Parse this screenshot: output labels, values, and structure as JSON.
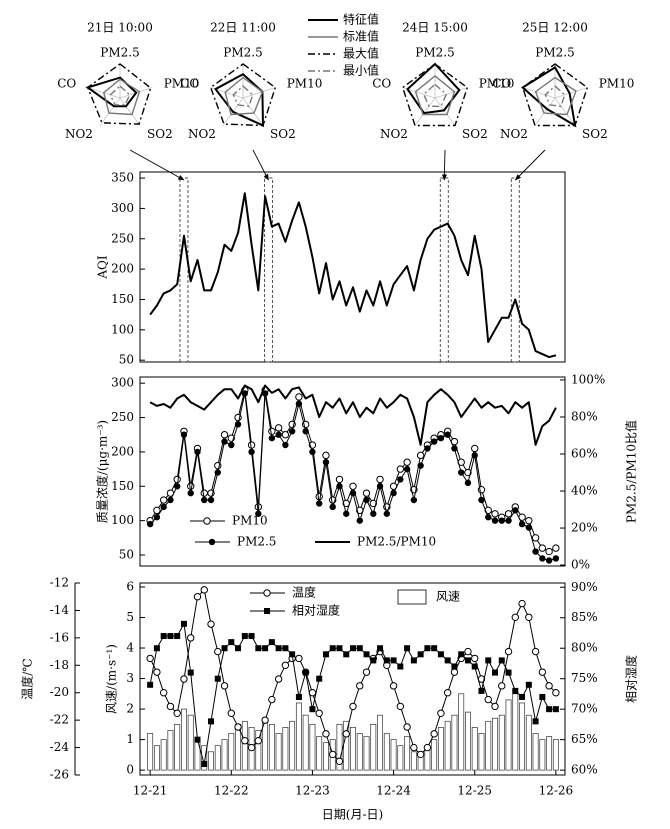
{
  "chart_data": [
    {
      "type": "radar",
      "axes": [
        "PM2.5",
        "PM10",
        "SO2",
        "NO2",
        "CO"
      ],
      "rlim": [
        0,
        1
      ],
      "series": [
        {
          "name": "特征值",
          "color": "#000000",
          "style": "solid"
        },
        {
          "name": "标准值",
          "color": "#777777",
          "style": "solid"
        },
        {
          "name": "最大值",
          "color": "#000000",
          "style": "dashdot"
        },
        {
          "name": "最小值",
          "color": "#777777",
          "style": "dashdot"
        }
      ],
      "panels": [
        {
          "title": "21日 10:00",
          "values": [
            [
              0.6,
              0.5,
              0.3,
              0.3,
              1.0
            ],
            [
              0.55,
              0.6,
              0.6,
              0.55,
              0.5
            ],
            [
              1,
              0.95,
              0.95,
              0.9,
              1
            ],
            [
              0.35,
              0.3,
              0.25,
              0.25,
              0.3
            ]
          ]
        },
        {
          "title": "22日 11:00",
          "values": [
            [
              0.7,
              0.6,
              1.0,
              0.5,
              0.85
            ],
            [
              0.6,
              0.6,
              0.55,
              0.6,
              0.55
            ],
            [
              1,
              1,
              1,
              0.95,
              1
            ],
            [
              0.35,
              0.3,
              0.3,
              0.25,
              0.3
            ]
          ]
        },
        {
          "title": "24日 15:00",
          "values": [
            [
              1.0,
              0.75,
              0.45,
              0.55,
              0.85
            ],
            [
              0.65,
              0.6,
              0.6,
              0.6,
              0.6
            ],
            [
              1,
              1,
              1,
              1,
              1
            ],
            [
              0.4,
              0.35,
              0.3,
              0.3,
              0.35
            ]
          ]
        },
        {
          "title": "25日 12:00",
          "values": [
            [
              0.9,
              0.45,
              1.0,
              0.4,
              1.0
            ],
            [
              0.6,
              0.65,
              0.6,
              0.55,
              0.6
            ],
            [
              1,
              1,
              1,
              1,
              1
            ],
            [
              0.35,
              0.3,
              0.3,
              0.25,
              0.3
            ]
          ]
        }
      ]
    },
    {
      "type": "line",
      "ylabel": "AQI",
      "x": [
        0,
        2,
        4,
        6,
        8,
        10,
        12,
        14,
        16,
        18,
        20,
        22,
        24,
        26,
        28,
        30,
        32,
        34,
        36,
        38,
        40,
        42,
        44,
        46,
        48,
        50,
        52,
        54,
        56,
        58,
        60,
        62,
        64,
        66,
        68,
        70,
        72,
        74,
        76,
        78,
        80,
        82,
        84,
        86,
        88,
        90,
        92,
        94,
        96,
        98,
        100,
        102,
        104,
        106,
        108,
        110,
        112,
        114,
        116,
        118,
        120
      ],
      "xlim": [
        -3,
        122.7
      ],
      "ylim": [
        47,
        360
      ],
      "yticks": [
        50,
        100,
        150,
        200,
        250,
        300,
        350
      ],
      "highlight_x": [
        10,
        35,
        87,
        108
      ],
      "series": [
        {
          "color": "#000000",
          "values": [
            125,
            140,
            160,
            165,
            175,
            255,
            180,
            215,
            165,
            165,
            195,
            240,
            230,
            260,
            325,
            240,
            165,
            320,
            270,
            275,
            245,
            280,
            310,
            270,
            220,
            160,
            210,
            150,
            180,
            140,
            170,
            130,
            165,
            140,
            180,
            140,
            175,
            190,
            205,
            165,
            215,
            250,
            265,
            270,
            275,
            255,
            215,
            190,
            255,
            200,
            80,
            100,
            120,
            120,
            150,
            110,
            100,
            65,
            60,
            55,
            58
          ]
        }
      ]
    },
    {
      "type": "line",
      "ylabel": "质量浓度/(μg·m⁻³)",
      "y2label": "PM2.5/PM10比值",
      "x": [
        0,
        2,
        4,
        6,
        8,
        10,
        12,
        14,
        16,
        18,
        20,
        22,
        24,
        26,
        28,
        30,
        32,
        34,
        36,
        38,
        40,
        42,
        44,
        46,
        48,
        50,
        52,
        54,
        56,
        58,
        60,
        62,
        64,
        66,
        68,
        70,
        72,
        74,
        76,
        78,
        80,
        82,
        84,
        86,
        88,
        90,
        92,
        94,
        96,
        98,
        100,
        102,
        104,
        106,
        108,
        110,
        112,
        114,
        116,
        118,
        120
      ],
      "xlim": [
        -3,
        122.7
      ],
      "ylim": [
        34,
        309
      ],
      "yticks": [
        50,
        100,
        150,
        200,
        250,
        300
      ],
      "y2lim": [
        -0.5,
        101.6
      ],
      "y2ticks": [
        {
          "value": 0,
          "label": "0%"
        },
        {
          "value": 20,
          "label": "20%"
        },
        {
          "value": 40,
          "label": "40%"
        },
        {
          "value": 60,
          "label": "60%"
        },
        {
          "value": 80,
          "label": "80%"
        },
        {
          "value": 100,
          "label": "100%"
        }
      ],
      "series": [
        {
          "name": "PM10",
          "color": "#000000",
          "marker": "open-circle",
          "values": [
            100,
            115,
            130,
            140,
            160,
            230,
            150,
            205,
            140,
            140,
            180,
            225,
            220,
            250,
            290,
            210,
            120,
            290,
            230,
            235,
            225,
            240,
            280,
            240,
            210,
            135,
            195,
            130,
            160,
            125,
            150,
            115,
            140,
            125,
            160,
            120,
            150,
            175,
            185,
            145,
            195,
            210,
            220,
            225,
            230,
            215,
            185,
            170,
            205,
            145,
            115,
            110,
            105,
            110,
            120,
            105,
            100,
            75,
            60,
            55,
            60
          ]
        },
        {
          "name": "PM2.5",
          "color": "#000000",
          "marker": "filled-circle",
          "values": [
            95,
            105,
            120,
            130,
            150,
            225,
            140,
            200,
            130,
            130,
            170,
            215,
            210,
            240,
            285,
            200,
            110,
            285,
            220,
            225,
            210,
            230,
            270,
            230,
            200,
            125,
            185,
            120,
            150,
            110,
            140,
            100,
            130,
            110,
            150,
            110,
            140,
            160,
            175,
            130,
            180,
            205,
            215,
            220,
            225,
            205,
            170,
            155,
            195,
            130,
            105,
            100,
            100,
            100,
            115,
            95,
            90,
            55,
            45,
            42,
            45
          ]
        },
        {
          "name": "PM2.5/PM10",
          "color": "#000000",
          "axis": "y2",
          "values": [
            88,
            86,
            87,
            85,
            90,
            92,
            88,
            86,
            84,
            88,
            92,
            95,
            95,
            90,
            97,
            95,
            88,
            97,
            93,
            95,
            90,
            95,
            96,
            90,
            92,
            80,
            88,
            85,
            90,
            82,
            88,
            80,
            85,
            82,
            90,
            85,
            88,
            92,
            90,
            80,
            65,
            88,
            92,
            95,
            92,
            88,
            80,
            85,
            90,
            85,
            88,
            85,
            86,
            82,
            88,
            85,
            88,
            65,
            75,
            78,
            85
          ]
        }
      ]
    },
    {
      "type": "combo",
      "xlabel": "日期(月-日)",
      "ylabel": "风速/(m·s⁻¹)",
      "y2label": "相对湿度",
      "y3label": "温度/℃",
      "x": [
        0,
        2,
        4,
        6,
        8,
        10,
        12,
        14,
        16,
        18,
        20,
        22,
        24,
        26,
        28,
        30,
        32,
        34,
        36,
        38,
        40,
        42,
        44,
        46,
        48,
        50,
        52,
        54,
        56,
        58,
        60,
        62,
        64,
        66,
        68,
        70,
        72,
        74,
        76,
        78,
        80,
        82,
        84,
        86,
        88,
        90,
        92,
        94,
        96,
        98,
        100,
        102,
        104,
        106,
        108,
        110,
        112,
        114,
        116,
        118,
        120
      ],
      "xlim": [
        -3,
        122.7
      ],
      "xticks": [
        {
          "value": 0,
          "label": "12-21"
        },
        {
          "value": 24,
          "label": "12-22"
        },
        {
          "value": 48,
          "label": "12-23"
        },
        {
          "value": 72,
          "label": "12-24"
        },
        {
          "value": 96,
          "label": "12-25"
        },
        {
          "value": 120,
          "label": "12-26"
        }
      ],
      "ylim": [
        -0.16,
        6.13
      ],
      "yticks": [
        0,
        1,
        2,
        3,
        4,
        5,
        6
      ],
      "y2lim": [
        59.2,
        90.7
      ],
      "y2ticks": [
        {
          "value": 60,
          "label": "60%"
        },
        {
          "value": 65,
          "label": "65%"
        },
        {
          "value": 70,
          "label": "70%"
        },
        {
          "value": 75,
          "label": "75%"
        },
        {
          "value": 80,
          "label": "80%"
        },
        {
          "value": 85,
          "label": "85%"
        },
        {
          "value": 90,
          "label": "90%"
        }
      ],
      "y3lim": [
        -26,
        -12
      ],
      "y3ticks": [
        -12,
        -14,
        -16,
        -18,
        -20,
        -22,
        -24,
        -26
      ],
      "series": [
        {
          "name": "温度",
          "color": "#000000",
          "axis": "y3",
          "marker": "open-circle",
          "values": [
            -17.5,
            -18.5,
            -20,
            -21,
            -21.5,
            -19,
            -16,
            -13,
            -12.5,
            -15,
            -17,
            -19.5,
            -21.5,
            -22.5,
            -23.5,
            -24,
            -23.5,
            -22,
            -20.5,
            -19,
            -18,
            -17.5,
            -17.5,
            -18.5,
            -20,
            -21.5,
            -23,
            -24.5,
            -25,
            -23,
            -21,
            -19.5,
            -18.5,
            -17.5,
            -17,
            -18,
            -19.5,
            -21,
            -22.5,
            -24,
            -24.5,
            -24,
            -23,
            -21.5,
            -20,
            -18.5,
            -17.5,
            -17,
            -17.5,
            -19,
            -20.5,
            -21,
            -19.5,
            -17,
            -14.5,
            -13.5,
            -14.5,
            -17,
            -18.5,
            -19.5,
            -20
          ]
        },
        {
          "name": "相对湿度",
          "color": "#000000",
          "axis": "y2",
          "marker": "filled-square",
          "values": [
            74,
            80,
            82,
            82,
            82,
            84,
            76,
            65,
            61,
            68,
            75,
            80,
            81,
            80,
            82,
            82,
            80,
            80,
            81,
            80,
            80,
            79,
            72,
            76,
            70,
            75,
            79,
            80,
            80,
            79,
            80,
            80,
            79,
            78,
            80,
            78,
            78,
            77,
            80,
            78,
            79,
            80,
            80,
            79,
            78,
            77,
            79,
            78,
            77,
            73,
            78,
            76,
            78,
            76,
            73,
            72,
            74,
            68,
            72,
            70,
            70
          ]
        },
        {
          "name": "风速",
          "color": "#ffffff",
          "type": "bar",
          "values": [
            1.2,
            0.8,
            1,
            1.3,
            1.5,
            2,
            1.8,
            1,
            0.8,
            0.6,
            0.8,
            1,
            1.2,
            1.5,
            1.6,
            1.4,
            1.3,
            1.7,
            1.5,
            1.2,
            1.4,
            1.6,
            2.2,
            1.8,
            1.5,
            1.1,
            0.9,
            1,
            1.5,
            1.6,
            1.4,
            1.2,
            1.1,
            1.5,
            1.8,
            1.2,
            1,
            0.8,
            1.1,
            0.6,
            0.5,
            0.8,
            1,
            1.4,
            1.6,
            1.8,
            2.5,
            1.9,
            1.4,
            1.2,
            1.6,
            1.7,
            1.8,
            2.3,
            2.5,
            2.2,
            1.8,
            1.2,
            1,
            1.1,
            1
          ]
        }
      ]
    }
  ]
}
